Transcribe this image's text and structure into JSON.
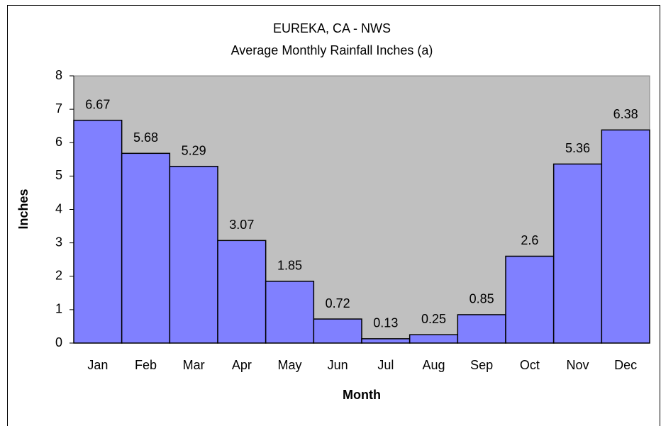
{
  "chart_data": {
    "type": "bar",
    "title": "EUREKA, CA - NWS",
    "subtitle": "Average Monthly Rainfall Inches (a)",
    "x_label": "Month",
    "y_label": "Inches",
    "categories": [
      "Jan",
      "Feb",
      "Mar",
      "Apr",
      "May",
      "Jun",
      "Jul",
      "Aug",
      "Sep",
      "Oct",
      "Nov",
      "Dec"
    ],
    "values": [
      6.67,
      5.68,
      5.29,
      3.07,
      1.85,
      0.72,
      0.13,
      0.25,
      0.85,
      2.6,
      5.36,
      6.38
    ],
    "color": "#8080ff",
    "plot_background": "#c0c0c0",
    "ylim": [
      0,
      8
    ],
    "yticks": [
      0,
      1,
      2,
      3,
      4,
      5,
      6,
      7,
      8
    ],
    "grid": false
  }
}
